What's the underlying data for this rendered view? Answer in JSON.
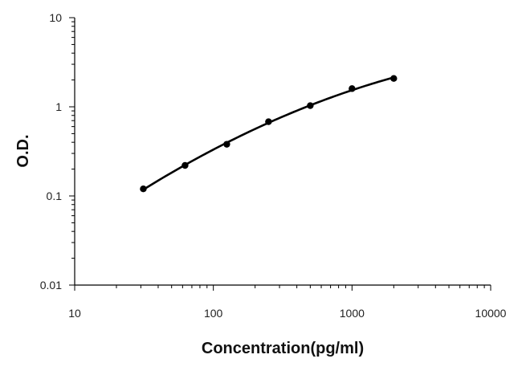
{
  "chart_data": {
    "type": "scatter",
    "title": "",
    "xlabel": "Concentration(pg/ml)",
    "ylabel": "O.D.",
    "xscale": "log",
    "yscale": "log",
    "xlim": [
      10,
      10000
    ],
    "ylim": [
      0.01,
      10
    ],
    "xticks": [
      "10",
      "100",
      "1000",
      "10000"
    ],
    "yticks": [
      "0.01",
      "0.1",
      "1",
      "10"
    ],
    "grid": false,
    "legend": "none",
    "line_color": "#000000",
    "series": [
      {
        "points": [
          {
            "x": 31.25,
            "y": 0.12
          },
          {
            "x": 62.5,
            "y": 0.22
          },
          {
            "x": 125,
            "y": 0.38
          },
          {
            "x": 250,
            "y": 0.68
          },
          {
            "x": 500,
            "y": 1.03
          },
          {
            "x": 1000,
            "y": 1.6
          },
          {
            "x": 2000,
            "y": 2.08
          }
        ],
        "fit_curve": true
      }
    ]
  }
}
